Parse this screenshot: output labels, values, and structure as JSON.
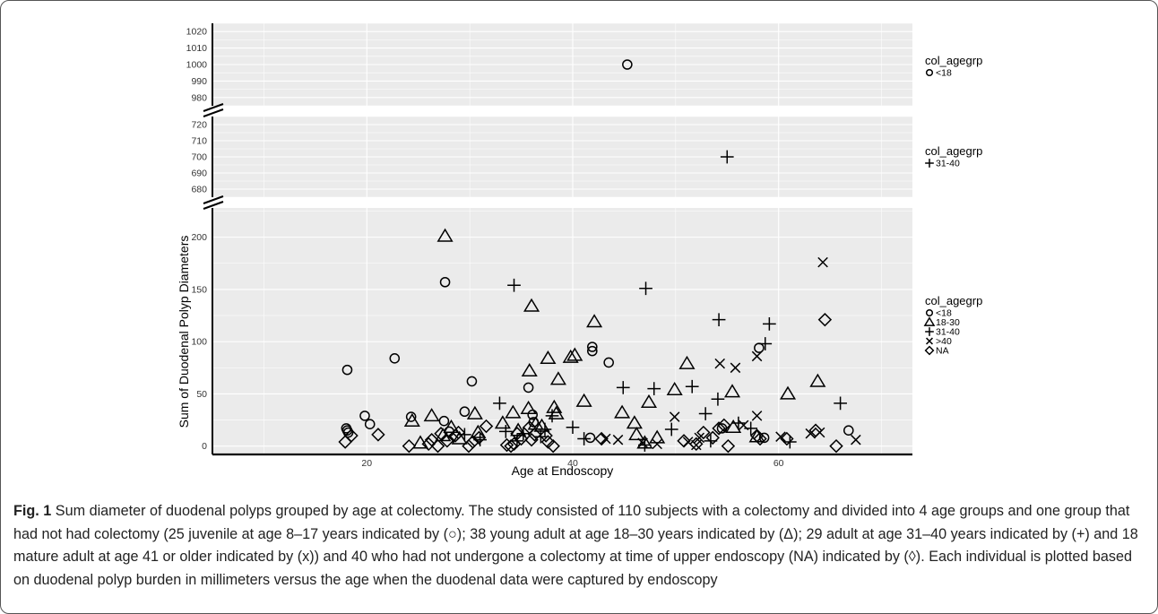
{
  "chart_data": {
    "type": "scatter",
    "xlabel": "Age at Endoscopy",
    "ylabel": "Sum of Duodenal Polyp Diameters",
    "xlim": [
      5,
      73
    ],
    "x_ticks": [
      20,
      40,
      60
    ],
    "grid": true,
    "axis_break": true,
    "legend_title": "col_agegrp",
    "legend_position": "right",
    "panels": [
      {
        "name": "upper",
        "ylim": [
          975,
          1025
        ],
        "y_ticks": [
          980,
          990,
          1000,
          1010,
          1020
        ],
        "legend": [
          {
            "symbol": "circle",
            "label": "<18"
          }
        ]
      },
      {
        "name": "middle",
        "ylim": [
          675,
          725
        ],
        "y_ticks": [
          680,
          690,
          700,
          710,
          720
        ],
        "legend": [
          {
            "symbol": "plus",
            "label": "31-40"
          }
        ]
      },
      {
        "name": "lower",
        "ylim": [
          -8,
          228
        ],
        "y_ticks": [
          0,
          50,
          100,
          150,
          200
        ],
        "legend": [
          {
            "symbol": "circle",
            "label": "<18"
          },
          {
            "symbol": "triangle",
            "label": "18-30"
          },
          {
            "symbol": "plus",
            "label": "31-40"
          },
          {
            "symbol": "cross",
            "label": ">40"
          },
          {
            "symbol": "diamond",
            "label": "NA"
          }
        ]
      }
    ],
    "series": [
      {
        "name": "<18",
        "symbol": "circle",
        "points": [
          [
            45.3,
            1000
          ],
          [
            27.6,
            157
          ],
          [
            18.1,
            73
          ],
          [
            22.7,
            84
          ],
          [
            30.2,
            62
          ],
          [
            41.9,
            95
          ],
          [
            41.9,
            91
          ],
          [
            43.5,
            80
          ],
          [
            35.7,
            56
          ],
          [
            58.1,
            94
          ],
          [
            19.8,
            29
          ],
          [
            20.3,
            21
          ],
          [
            18.0,
            17
          ],
          [
            18.1,
            15
          ],
          [
            18.2,
            13
          ],
          [
            24.3,
            28
          ],
          [
            27.5,
            24
          ],
          [
            29.5,
            33
          ],
          [
            36.1,
            30
          ],
          [
            36.2,
            23
          ],
          [
            41.7,
            8
          ],
          [
            54.5,
            17
          ],
          [
            58.6,
            8
          ],
          [
            66.8,
            15
          ],
          [
            28.0,
            14
          ]
        ]
      },
      {
        "name": "18-30",
        "symbol": "triangle",
        "points": [
          [
            27.6,
            201
          ],
          [
            36.0,
            134
          ],
          [
            42.1,
            119
          ],
          [
            35.8,
            72
          ],
          [
            37.6,
            84
          ],
          [
            39.8,
            85
          ],
          [
            38.6,
            64
          ],
          [
            41.1,
            43
          ],
          [
            47.4,
            42
          ],
          [
            44.8,
            32
          ],
          [
            46.0,
            22
          ],
          [
            51.1,
            79
          ],
          [
            49.9,
            54
          ],
          [
            55.5,
            52
          ],
          [
            60.9,
            50
          ],
          [
            63.8,
            62
          ],
          [
            38.2,
            37
          ],
          [
            26.3,
            29
          ],
          [
            24.4,
            24
          ],
          [
            30.5,
            31
          ],
          [
            34.2,
            32
          ],
          [
            35.7,
            36
          ],
          [
            36.4,
            21
          ],
          [
            37.0,
            19
          ],
          [
            38.4,
            31
          ],
          [
            40.2,
            87
          ],
          [
            48.2,
            8
          ],
          [
            33.2,
            22
          ],
          [
            34.7,
            15
          ],
          [
            57.9,
            9
          ],
          [
            46.2,
            11
          ],
          [
            27.4,
            10
          ],
          [
            25.2,
            3
          ],
          [
            28.2,
            18
          ],
          [
            30.8,
            13
          ],
          [
            29.0,
            7
          ],
          [
            55.6,
            18
          ],
          [
            47.0,
            3
          ]
        ]
      },
      {
        "name": "31-40",
        "symbol": "plus",
        "points": [
          [
            55.0,
            700
          ],
          [
            34.3,
            154
          ],
          [
            47.1,
            151
          ],
          [
            54.2,
            121
          ],
          [
            59.1,
            117
          ],
          [
            58.7,
            98
          ],
          [
            44.9,
            56
          ],
          [
            47.9,
            55
          ],
          [
            51.6,
            57
          ],
          [
            54.1,
            45
          ],
          [
            32.9,
            41
          ],
          [
            66.0,
            41
          ],
          [
            52.9,
            31
          ],
          [
            49.6,
            16
          ],
          [
            56.1,
            22
          ],
          [
            57.3,
            17
          ],
          [
            37.3,
            16
          ],
          [
            36.9,
            9
          ],
          [
            41.1,
            7
          ],
          [
            47.0,
            1
          ],
          [
            61.1,
            4
          ],
          [
            33.5,
            14
          ],
          [
            35.2,
            12
          ],
          [
            38.0,
            29
          ],
          [
            34.6,
            5
          ],
          [
            40.0,
            18
          ],
          [
            29.5,
            11
          ],
          [
            53.4,
            5
          ],
          [
            31.0,
            6
          ]
        ]
      },
      {
        "name": ">40",
        "symbol": "cross",
        "points": [
          [
            64.3,
            176
          ],
          [
            54.3,
            79
          ],
          [
            55.8,
            75
          ],
          [
            57.9,
            86
          ],
          [
            49.9,
            28
          ],
          [
            57.9,
            29
          ],
          [
            67.5,
            6
          ],
          [
            48.2,
            2
          ],
          [
            51.2,
            4
          ],
          [
            52.3,
            8
          ],
          [
            43.2,
            7
          ],
          [
            44.4,
            6
          ],
          [
            63.1,
            12
          ],
          [
            64.0,
            13
          ],
          [
            60.2,
            9
          ],
          [
            52.0,
            1
          ],
          [
            56.6,
            20
          ],
          [
            46.8,
            3
          ]
        ]
      },
      {
        "name": "NA",
        "symbol": "diamond",
        "points": [
          [
            64.5,
            121
          ],
          [
            17.9,
            4
          ],
          [
            18.5,
            10
          ],
          [
            21.1,
            11
          ],
          [
            24.1,
            0
          ],
          [
            26.3,
            6
          ],
          [
            26.9,
            0
          ],
          [
            26.0,
            2
          ],
          [
            27.2,
            12
          ],
          [
            28.6,
            10
          ],
          [
            29.9,
            0
          ],
          [
            30.9,
            8
          ],
          [
            31.6,
            19
          ],
          [
            33.6,
            1
          ],
          [
            34.0,
            0
          ],
          [
            34.6,
            12
          ],
          [
            35.8,
            18
          ],
          [
            36.3,
            11
          ],
          [
            37.6,
            4
          ],
          [
            38.1,
            0
          ],
          [
            36.0,
            6
          ],
          [
            34.3,
            2
          ],
          [
            42.8,
            7
          ],
          [
            50.8,
            5
          ],
          [
            52.0,
            2
          ],
          [
            52.7,
            13
          ],
          [
            54.2,
            17
          ],
          [
            54.7,
            20
          ],
          [
            55.1,
            0
          ],
          [
            57.9,
            10
          ],
          [
            58.2,
            7
          ],
          [
            60.8,
            7
          ],
          [
            63.6,
            15
          ],
          [
            65.6,
            0
          ],
          [
            28.9,
            13
          ],
          [
            30.3,
            4
          ],
          [
            35.0,
            7
          ],
          [
            37.4,
            10
          ],
          [
            53.6,
            8
          ],
          [
            27.8,
            5
          ]
        ]
      }
    ]
  },
  "caption": {
    "label": "Fig. 1",
    "text": "Sum diameter of duodenal polyps grouped by age at colectomy. The study consisted of 110 subjects with a colectomy and divided into 4 age groups and one group that had not had colectomy (25 juvenile at age 8–17 years indicated by (○); 38 young adult at age 18–30 years indicated by (Δ); 29 adult at age 31–40 years indicated by (+) and 18 mature adult at age 41 or older indicated by (x)) and 40 who had not undergone a colectomy at time of upper endoscopy (NA) indicated by (◊). Each individual is plotted based on duodenal polyp burden in millimeters versus the age when the duodenal data were captured by endoscopy"
  }
}
